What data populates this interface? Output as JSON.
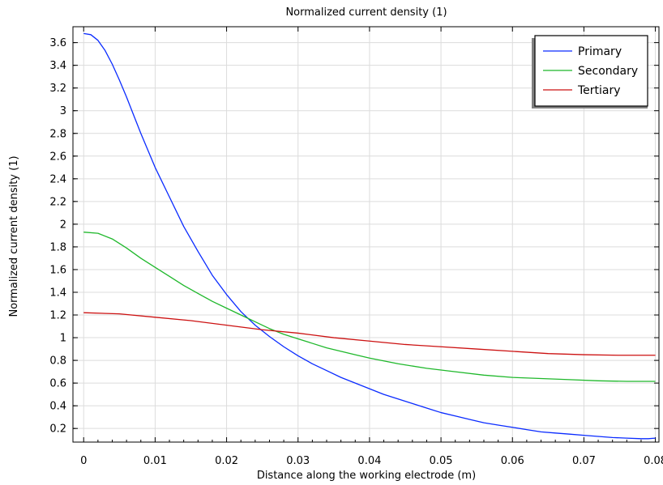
{
  "chart_data": {
    "type": "line",
    "title": "Normalized current density (1)",
    "xlabel": "Distance along the working electrode (m)",
    "ylabel": "Normalized current density (1)",
    "xlim": [
      -0.0015,
      0.0805
    ],
    "ylim": [
      0.08,
      3.74
    ],
    "x_ticks": [
      0,
      0.01,
      0.02,
      0.03,
      0.04,
      0.05,
      0.06,
      0.07,
      0.08
    ],
    "x_tick_labels": [
      "0",
      "0.01",
      "0.02",
      "0.03",
      "0.04",
      "0.05",
      "0.06",
      "0.07",
      "0.08"
    ],
    "y_ticks": [
      0.2,
      0.4,
      0.6,
      0.8,
      1.0,
      1.2,
      1.4,
      1.6,
      1.8,
      2.0,
      2.2,
      2.4,
      2.6,
      2.8,
      3.0,
      3.2,
      3.4,
      3.6
    ],
    "y_tick_labels": [
      "0.2",
      "0.4",
      "0.6",
      "0.8",
      "1",
      "1.2",
      "1.4",
      "1.6",
      "1.8",
      "2",
      "2.2",
      "2.4",
      "2.6",
      "2.8",
      "3",
      "3.2",
      "3.4",
      "3.6"
    ],
    "grid": true,
    "legend_position": "top-right",
    "series": [
      {
        "name": "Primary",
        "color": "#0a2bff",
        "x": [
          0,
          0.001,
          0.002,
          0.003,
          0.004,
          0.005,
          0.006,
          0.007,
          0.008,
          0.009,
          0.01,
          0.012,
          0.014,
          0.016,
          0.018,
          0.02,
          0.022,
          0.024,
          0.026,
          0.028,
          0.03,
          0.032,
          0.034,
          0.036,
          0.038,
          0.04,
          0.042,
          0.044,
          0.046,
          0.048,
          0.05,
          0.052,
          0.054,
          0.056,
          0.058,
          0.06,
          0.062,
          0.064,
          0.066,
          0.068,
          0.07,
          0.072,
          0.074,
          0.076,
          0.078,
          0.079,
          0.08
        ],
        "y": [
          3.68,
          3.67,
          3.62,
          3.53,
          3.41,
          3.27,
          3.12,
          2.96,
          2.8,
          2.65,
          2.5,
          2.24,
          1.98,
          1.76,
          1.55,
          1.38,
          1.23,
          1.11,
          1.01,
          0.92,
          0.84,
          0.77,
          0.71,
          0.65,
          0.6,
          0.55,
          0.5,
          0.46,
          0.42,
          0.38,
          0.34,
          0.31,
          0.28,
          0.25,
          0.23,
          0.21,
          0.19,
          0.17,
          0.16,
          0.15,
          0.14,
          0.13,
          0.12,
          0.115,
          0.11,
          0.11,
          0.115
        ]
      },
      {
        "name": "Secondary",
        "color": "#1fb82b",
        "x": [
          0,
          0.002,
          0.004,
          0.006,
          0.008,
          0.01,
          0.012,
          0.014,
          0.016,
          0.018,
          0.02,
          0.022,
          0.024,
          0.026,
          0.028,
          0.03,
          0.032,
          0.034,
          0.036,
          0.038,
          0.04,
          0.044,
          0.048,
          0.052,
          0.056,
          0.06,
          0.064,
          0.068,
          0.072,
          0.076,
          0.08
        ],
        "y": [
          1.93,
          1.92,
          1.87,
          1.79,
          1.7,
          1.62,
          1.54,
          1.46,
          1.39,
          1.32,
          1.26,
          1.2,
          1.14,
          1.08,
          1.03,
          0.99,
          0.95,
          0.91,
          0.88,
          0.85,
          0.82,
          0.77,
          0.73,
          0.7,
          0.67,
          0.65,
          0.64,
          0.63,
          0.62,
          0.615,
          0.615
        ]
      },
      {
        "name": "Tertiary",
        "color": "#cc1111",
        "x": [
          0,
          0.005,
          0.01,
          0.015,
          0.02,
          0.025,
          0.03,
          0.035,
          0.04,
          0.045,
          0.05,
          0.055,
          0.06,
          0.065,
          0.07,
          0.075,
          0.08
        ],
        "y": [
          1.22,
          1.21,
          1.18,
          1.15,
          1.11,
          1.07,
          1.04,
          1.0,
          0.97,
          0.94,
          0.92,
          0.9,
          0.88,
          0.86,
          0.85,
          0.845,
          0.845
        ]
      }
    ]
  }
}
